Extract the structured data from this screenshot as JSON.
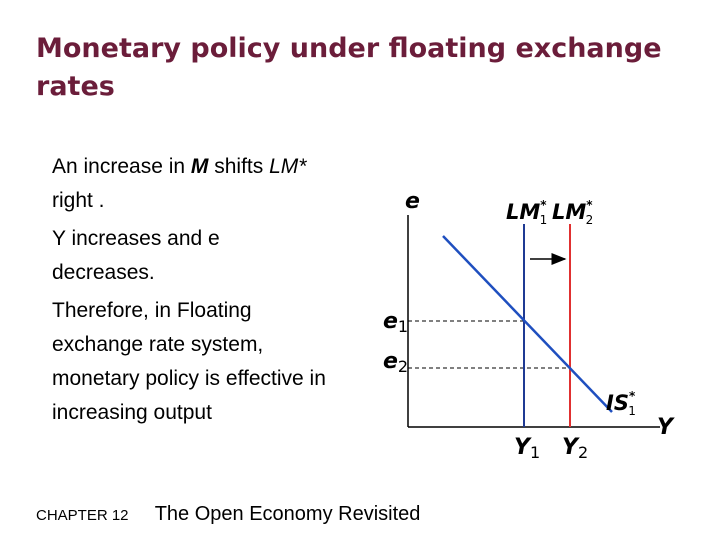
{
  "slide": {
    "title": "Monetary policy under floating exchange rates",
    "bullets": [
      {
        "pre": "An increase in ",
        "em": "M",
        "post": " shifts ",
        "em2": "LM*",
        "post2": " right ."
      },
      {
        "text": "Y increases and e decreases."
      },
      {
        "text": "Therefore, in Floating exchange rate system, monetary policy is effective in increasing output"
      }
    ],
    "footer": {
      "chapter": "CHAPTER 12",
      "book": "The Open Economy Revisited"
    }
  },
  "diagram": {
    "y_axis_label": "e",
    "x_axis_label": "Y",
    "curves": {
      "lm1": {
        "base": "LM",
        "sup": "*",
        "sub": "1",
        "color": "#1f3a93"
      },
      "lm2": {
        "base": "LM",
        "sup": "*",
        "sub": "2",
        "color": "#e03030"
      },
      "is1": {
        "base": "IS",
        "sup": "*",
        "sub": "1",
        "color": "#1f4fbf"
      }
    },
    "ticks": {
      "e1": {
        "base": "e",
        "sub": "1"
      },
      "e2": {
        "base": "e",
        "sub": "2"
      },
      "y1": {
        "base": "Y",
        "sub": "1"
      },
      "y2": {
        "base": "Y",
        "sub": "2"
      }
    },
    "shift_arrow": "right"
  }
}
